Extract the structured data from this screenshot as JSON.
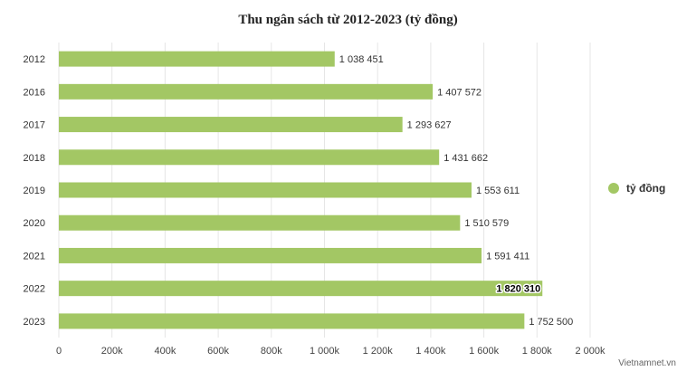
{
  "chart_data": {
    "type": "bar",
    "orientation": "horizontal",
    "title": "Thu ngân sách từ 2012-2023 (tỷ đồng)",
    "categories": [
      "2012",
      "2016",
      "2017",
      "2018",
      "2019",
      "2020",
      "2021",
      "2022",
      "2023"
    ],
    "series": [
      {
        "name": "tỷ đồng",
        "values": [
          1038451,
          1407572,
          1293627,
          1431662,
          1553611,
          1510579,
          1591411,
          1820310,
          1752500
        ],
        "labels": [
          "1 038 451",
          "1 407 572",
          "1 293 627",
          "1 431 662",
          "1 553 611",
          "1 510 579",
          "1 591 411",
          "1 820 310",
          "1 752 500"
        ]
      }
    ],
    "xlim": [
      0,
      2000000
    ],
    "xticks": [
      0,
      200000,
      400000,
      600000,
      800000,
      1000000,
      1200000,
      1400000,
      1600000,
      1800000,
      2000000
    ],
    "xtick_labels": [
      "0",
      "200k",
      "400k",
      "600k",
      "800k",
      "1 000k",
      "1 200k",
      "1 400k",
      "1 600k",
      "1 800k",
      "2 000k"
    ],
    "highlighted_category": "2022",
    "grid": true,
    "legend_position": "right",
    "bar_color": "#a3c764"
  },
  "legend": {
    "label": "tỷ đồng"
  },
  "source": "Vietnamnet.vn"
}
